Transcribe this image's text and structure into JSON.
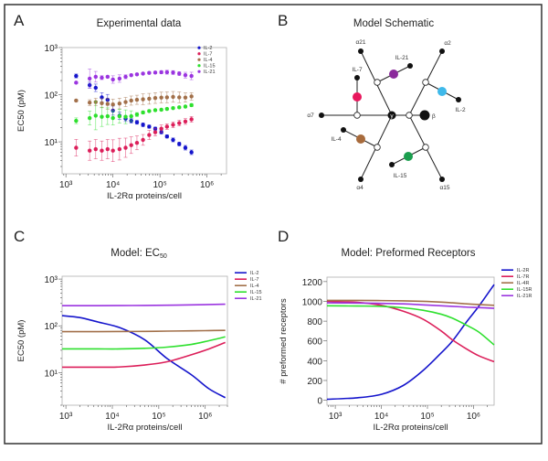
{
  "panels": {
    "A": {
      "letter": "A",
      "title": "Experimental data"
    },
    "B": {
      "letter": "B",
      "title": "Model Schematic"
    },
    "C": {
      "letter": "C",
      "title_main": "Model: EC",
      "title_sub": "50"
    },
    "D": {
      "letter": "D",
      "title": "Model: Preformed Receptors"
    }
  },
  "colors": {
    "IL-2": "#1515cc",
    "IL-7": "#dc1f5a",
    "IL-4": "#a2704a",
    "IL-15": "#2ee02e",
    "IL-21": "#9b35e0"
  },
  "schematic": {
    "gamma": "γ",
    "beta": "β",
    "alpha_labels": {
      "a21": "α21",
      "a2": "α2",
      "a7": "α7",
      "a4": "α4",
      "a15": "α15"
    },
    "ligands": [
      {
        "id": "IL-21",
        "label": "IL-21",
        "color": "#8b2a9b"
      },
      {
        "id": "IL-2",
        "label": "IL-2",
        "color": "#3fb9ea"
      },
      {
        "id": "IL-7",
        "label": "IL-7",
        "color": "#e8175d"
      },
      {
        "id": "IL-4",
        "label": "IL-4",
        "color": "#a86b3c"
      },
      {
        "id": "IL-15",
        "label": "IL-15",
        "color": "#1a9e4e"
      }
    ]
  },
  "chart_data": [
    {
      "panel": "A",
      "type": "scatter",
      "title": "Experimental data",
      "xlabel": "IL-2Rα proteins/cell",
      "ylabel": "EC50 (pM)",
      "xscale": "log",
      "yscale": "log",
      "xlim": [
        830,
        2600000
      ],
      "ylim": [
        2.1,
        1000
      ],
      "xticks": [
        1000,
        10000,
        100000,
        1000000
      ],
      "xtick_labels": [
        "10³",
        "10⁴",
        "10⁵",
        "10⁶"
      ],
      "yticks": [
        10,
        100,
        1000
      ],
      "ytick_labels": [
        "10¹",
        "10²",
        "10³"
      ],
      "legend": "top-right",
      "x": [
        1650,
        3200,
        4300,
        5800,
        7700,
        10000,
        13800,
        18600,
        24500,
        32400,
        43600,
        59000,
        79400,
        107000,
        141000,
        190000,
        257000,
        347000,
        468000
      ],
      "series": [
        {
          "name": "IL-2",
          "values": [
            250,
            160,
            140,
            88,
            78,
            46,
            36,
            31,
            28,
            26,
            23,
            21,
            19,
            16,
            13,
            11,
            9,
            7.5,
            6
          ],
          "err_factor": [
            1.1,
            1.15,
            1.2,
            1.25,
            1.3,
            1.25,
            1.2,
            1.15,
            1.12,
            1.1,
            1.1,
            1.08,
            1.08,
            1.08,
            1.08,
            1.1,
            1.1,
            1.12,
            1.12
          ]
        },
        {
          "name": "IL-7",
          "values": [
            7.5,
            6.5,
            7,
            6.5,
            7,
            6.5,
            7,
            7.5,
            8.5,
            9.5,
            11,
            14,
            16,
            19,
            21,
            23,
            25,
            27,
            30
          ],
          "err_factor": [
            1.5,
            1.6,
            1.6,
            1.6,
            1.6,
            1.7,
            1.7,
            1.6,
            1.5,
            1.4,
            1.3,
            1.25,
            1.2,
            1.2,
            1.15,
            1.15,
            1.15,
            1.15,
            1.15
          ]
        },
        {
          "name": "IL-4",
          "values": [
            75,
            68,
            70,
            66,
            64,
            62,
            65,
            70,
            75,
            78,
            80,
            82,
            85,
            87,
            88,
            90,
            88,
            87,
            92
          ],
          "err_factor": [
            1.05,
            1.15,
            1.2,
            1.25,
            1.3,
            1.3,
            1.3,
            1.25,
            1.25,
            1.25,
            1.3,
            1.3,
            1.3,
            1.3,
            1.3,
            1.3,
            1.3,
            1.25,
            1.2
          ]
        },
        {
          "name": "IL-15",
          "values": [
            28,
            32,
            36,
            34,
            35,
            32,
            35,
            34,
            35,
            38,
            42,
            45,
            47,
            48,
            50,
            52,
            54,
            56,
            60
          ],
          "err_factor": [
            1.15,
            1.4,
            2,
            1.6,
            1.5,
            1.4,
            1.4,
            1.4,
            1.3,
            1.1,
            1.08,
            1.06,
            1.05,
            1.05,
            1.05,
            1.05,
            1.05,
            1.05,
            1.08
          ]
        },
        {
          "name": "IL-21",
          "values": [
            180,
            220,
            240,
            230,
            240,
            210,
            220,
            240,
            260,
            270,
            280,
            290,
            295,
            300,
            300,
            295,
            280,
            260,
            250
          ],
          "err_factor": [
            1.05,
            1.6,
            1.3,
            1.1,
            1.05,
            1.2,
            1.2,
            1.1,
            1.05,
            1.05,
            1.05,
            1.05,
            1.05,
            1.08,
            1.1,
            1.1,
            1.1,
            1.15,
            1.2
          ]
        }
      ]
    },
    {
      "panel": "C",
      "type": "line",
      "title": "Model: EC50",
      "xlabel": "IL-2Rα proteins/cell",
      "ylabel": "EC50 (pM)",
      "xscale": "log",
      "yscale": "log",
      "xlim": [
        830,
        3000000
      ],
      "ylim": [
        2,
        1150
      ],
      "xticks": [
        1000,
        10000,
        100000,
        1000000
      ],
      "xtick_labels": [
        "10³",
        "10⁴",
        "10⁵",
        "10⁶"
      ],
      "yticks": [
        10,
        100,
        1000
      ],
      "ytick_labels": [
        "10¹",
        "10²",
        "10³"
      ],
      "legend": "right",
      "x": [
        830,
        2000,
        5000,
        15000,
        50000,
        150000,
        500000,
        1200000,
        2700000
      ],
      "series": [
        {
          "name": "IL-2",
          "values": [
            165,
            150,
            120,
            90,
            50,
            20,
            9,
            4.5,
            2.9
          ]
        },
        {
          "name": "IL-7",
          "values": [
            13,
            13,
            13,
            13.2,
            14.5,
            17,
            24,
            32,
            44
          ]
        },
        {
          "name": "IL-4",
          "values": [
            75,
            75,
            75,
            75.5,
            76,
            77,
            78,
            79,
            80
          ]
        },
        {
          "name": "IL-15",
          "values": [
            32,
            32,
            32,
            32,
            33,
            35,
            40,
            48,
            58
          ]
        },
        {
          "name": "IL-21",
          "values": [
            270,
            270,
            270,
            271,
            273,
            276,
            280,
            285,
            290
          ]
        }
      ]
    },
    {
      "panel": "D",
      "type": "line",
      "title": "Model: Preformed Receptors",
      "xlabel": "IL-2Rα proteins/cell",
      "ylabel": "# preformed receptors",
      "xscale": "log",
      "yscale": "linear",
      "xlim": [
        660,
        2800000
      ],
      "ylim": [
        -50,
        1245
      ],
      "xticks": [
        1000,
        10000,
        100000,
        1000000
      ],
      "xtick_labels": [
        "10³",
        "10⁴",
        "10⁵",
        "10⁶"
      ],
      "yticks": [
        0,
        200,
        400,
        600,
        800,
        1000,
        1200
      ],
      "ytick_labels": [
        "0",
        "200",
        "400",
        "600",
        "800",
        "1000",
        "1200"
      ],
      "legend": "right",
      "x": [
        660,
        3000,
        10000,
        30000,
        80000,
        200000,
        350000,
        700000,
        1300000,
        2800000
      ],
      "series": [
        {
          "name": "IL-2R",
          "values": [
            10,
            25,
            60,
            150,
            300,
            480,
            600,
            790,
            950,
            1170
          ]
        },
        {
          "name": "IL-7R",
          "values": [
            1000,
            990,
            960,
            900,
            820,
            700,
            610,
            520,
            450,
            390
          ]
        },
        {
          "name": "IL-4R",
          "values": [
            1010,
            1010,
            1008,
            1005,
            1000,
            992,
            985,
            975,
            968,
            960
          ]
        },
        {
          "name": "IL-15R",
          "values": [
            955,
            953,
            950,
            935,
            910,
            870,
            830,
            760,
            690,
            560
          ]
        },
        {
          "name": "IL-21R",
          "values": [
            985,
            983,
            980,
            975,
            965,
            955,
            950,
            942,
            937,
            930
          ]
        }
      ]
    }
  ]
}
